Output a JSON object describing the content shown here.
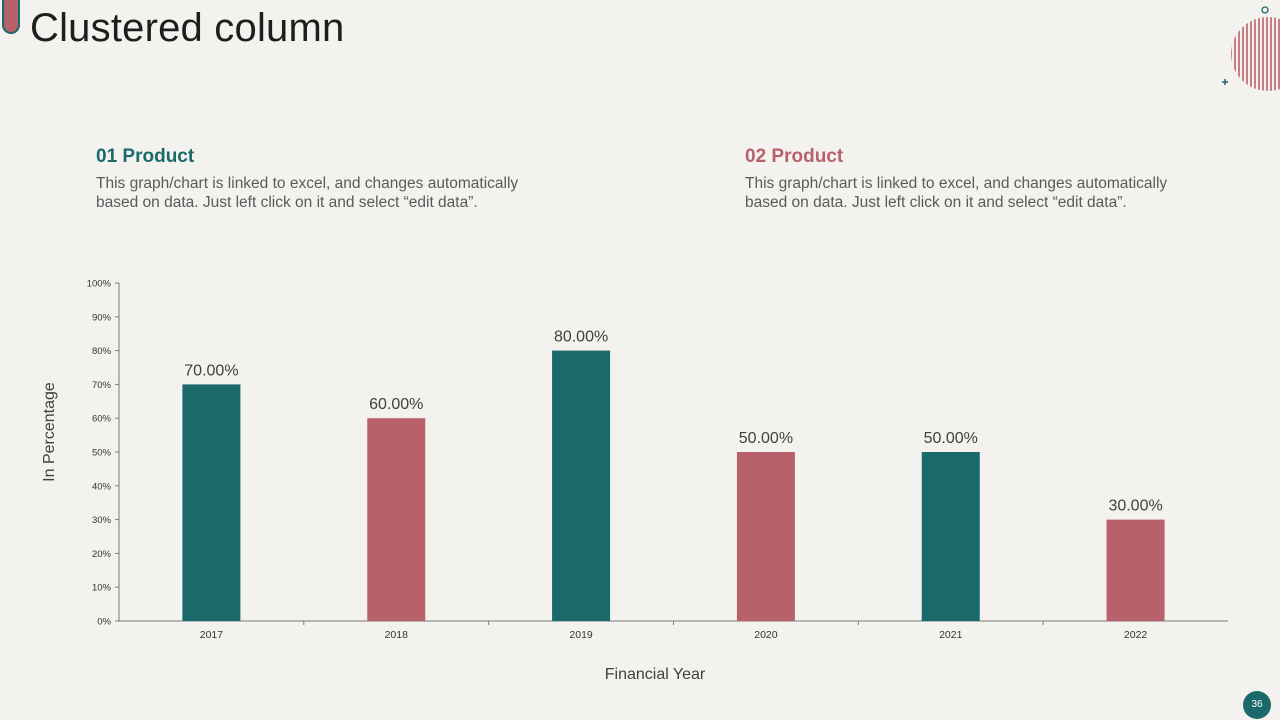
{
  "slide": {
    "title": "Clustered column",
    "page_number": "36"
  },
  "products": [
    {
      "heading": "01 Product",
      "text": "This graph/chart is linked to excel, and changes automatically based on data. Just left click on it and select “edit data”.",
      "color": "#1b6a6b"
    },
    {
      "heading": "02 Product",
      "text": "This graph/chart is linked to excel, and changes automatically based on data. Just left click on it and select “edit data”.",
      "color": "#b9616a"
    }
  ],
  "colors": {
    "teal": "#1b6a6b",
    "rose": "#b9616a",
    "background": "#f3f2ee"
  },
  "chart_data": {
    "type": "bar",
    "categories": [
      "2017",
      "2018",
      "2019",
      "2020",
      "2021",
      "2022"
    ],
    "values": [
      70,
      60,
      80,
      50,
      50,
      30
    ],
    "data_labels": [
      "70.00%",
      "60.00%",
      "80.00%",
      "50.00%",
      "50.00%",
      "30.00%"
    ],
    "bar_colors": [
      "#1b6a6b",
      "#b9616a",
      "#1b6a6b",
      "#b9616a",
      "#1b6a6b",
      "#b9616a"
    ],
    "y_ticks": [
      "0%",
      "10%",
      "20%",
      "30%",
      "40%",
      "50%",
      "60%",
      "70%",
      "80%",
      "90%",
      "100%"
    ],
    "ylim": [
      0,
      100
    ],
    "xlabel": "Financial Year",
    "ylabel": "In Percentage",
    "grid": false
  }
}
